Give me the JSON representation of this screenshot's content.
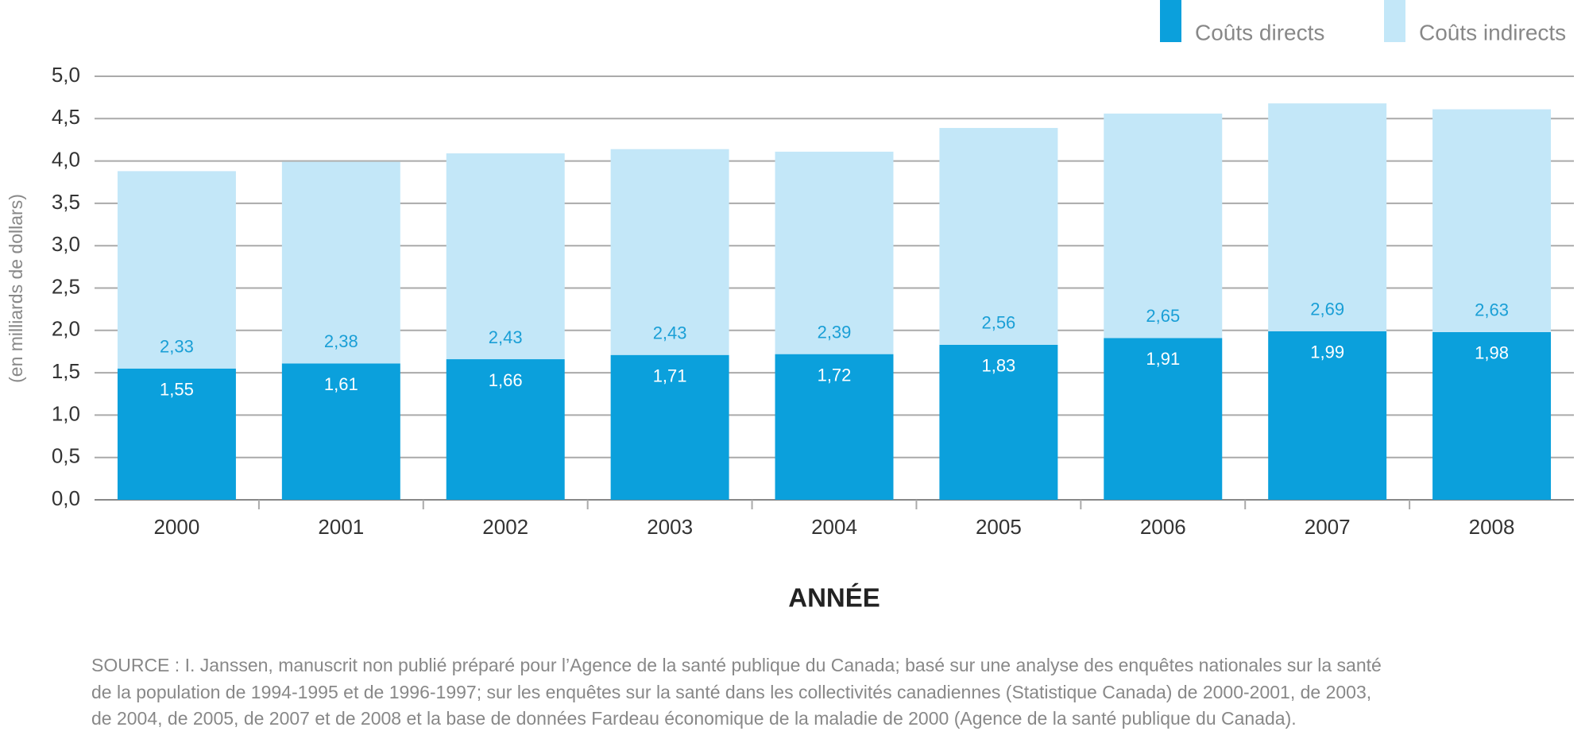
{
  "chart_data": {
    "type": "stacked-bar",
    "y_label": "(en milliards de dollars)",
    "x_label": "ANNÉE",
    "categories": [
      "2000",
      "2001",
      "2002",
      "2003",
      "2004",
      "2005",
      "2006",
      "2007",
      "2008"
    ],
    "series": [
      {
        "name": "Coûts directs",
        "color": "#0ba0dc",
        "label_color": "#ffffff",
        "values": [
          1.55,
          1.61,
          1.66,
          1.71,
          1.72,
          1.83,
          1.91,
          1.99,
          1.98
        ],
        "value_labels": [
          "1,55",
          "1,61",
          "1,66",
          "1,71",
          "1,72",
          "1,83",
          "1,91",
          "1,99",
          "1,98"
        ]
      },
      {
        "name": "Coûts indirects",
        "color": "#c3e7f8",
        "label_color": "#1a9fd6",
        "values": [
          2.33,
          2.38,
          2.43,
          2.43,
          2.39,
          2.56,
          2.65,
          2.69,
          2.63
        ],
        "value_labels": [
          "2,33",
          "2,38",
          "2,43",
          "2,43",
          "2,39",
          "2,56",
          "2,65",
          "2,69",
          "2,63"
        ]
      }
    ],
    "ylim": [
      0,
      5
    ],
    "yticks": [
      {
        "value": 0,
        "label": "0,0"
      },
      {
        "value": 0.5,
        "label": "0,5"
      },
      {
        "value": 1,
        "label": "1,0"
      },
      {
        "value": 1.5,
        "label": "1,5"
      },
      {
        "value": 2,
        "label": "2,0"
      },
      {
        "value": 2.5,
        "label": "2,5"
      },
      {
        "value": 3,
        "label": "3,0"
      },
      {
        "value": 3.5,
        "label": "3,5"
      },
      {
        "value": 4,
        "label": "4,0"
      },
      {
        "value": 4.5,
        "label": "4,5"
      },
      {
        "value": 5,
        "label": "5,0"
      }
    ],
    "grid": true,
    "legend": "top-right",
    "source": [
      "SOURCE : I. Janssen, manuscrit non publié préparé pour l’Agence de la santé publique du Canada; basé sur une analyse des enquêtes nationales sur la santé",
      "de la population de 1994-1995 et de 1996-1997; sur les enquêtes sur la santé dans les collectivités canadiennes (Statistique Canada) de 2000-2001, de 2003,",
      "de 2004, de 2005, de 2007 et de 2008 et la base de données Fardeau économique de la maladie de 2000 (Agence de la santé publique du Canada)."
    ]
  }
}
